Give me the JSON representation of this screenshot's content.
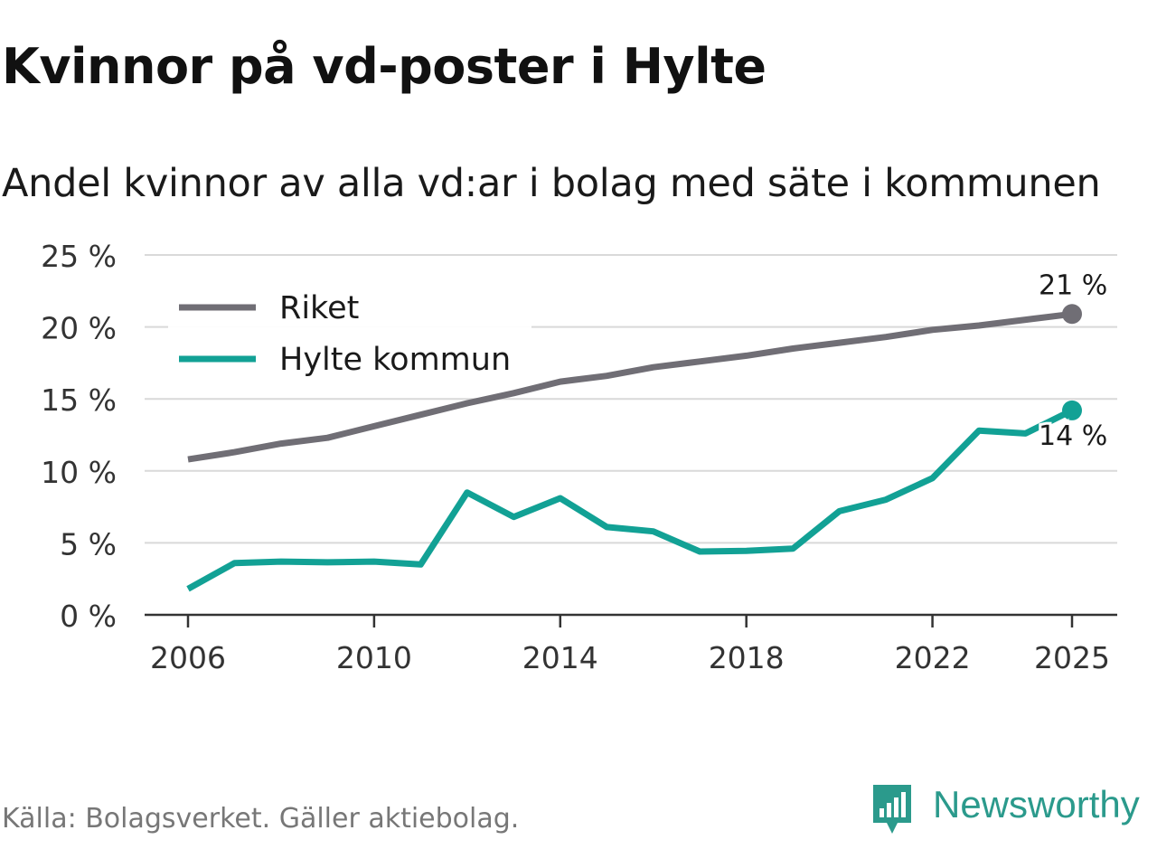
{
  "title": "Kvinnor på vd-poster i Hylte",
  "subtitle": "Andel kvinnor av alla vd:ar i bolag med säte i kommunen",
  "source": "Källa: Bolagsverket. Gäller aktiebolag.",
  "brand": {
    "name": "Newsworthy"
  },
  "colors": {
    "riket": "#706e75",
    "hylte": "#12a195",
    "grid": "#d9d9d9",
    "axis": "#333333"
  },
  "chart_data": {
    "type": "line",
    "title": "Kvinnor på vd-poster i Hylte",
    "subtitle": "Andel kvinnor av alla vd:ar i bolag med säte i kommunen",
    "xlabel": "",
    "ylabel": "",
    "ylim": [
      0,
      25
    ],
    "xlim": [
      2006,
      2025
    ],
    "y_ticks": [
      0,
      5,
      10,
      15,
      20,
      25
    ],
    "y_tick_labels": [
      "0 %",
      "5 %",
      "10 %",
      "15 %",
      "20 %",
      "25 %"
    ],
    "x_ticks": [
      2006,
      2010,
      2014,
      2018,
      2022,
      2025
    ],
    "x_tick_labels": [
      "2006",
      "2010",
      "2014",
      "2018",
      "2022",
      "2025"
    ],
    "legend_position": "top-left",
    "x": [
      2006,
      2007,
      2008,
      2009,
      2010,
      2011,
      2012,
      2013,
      2014,
      2015,
      2016,
      2017,
      2018,
      2019,
      2020,
      2021,
      2022,
      2023,
      2024,
      2025
    ],
    "series": [
      {
        "name": "Riket",
        "color_key": "riket",
        "values": [
          10.8,
          11.3,
          11.9,
          12.3,
          13.1,
          13.9,
          14.7,
          15.4,
          16.2,
          16.6,
          17.2,
          17.6,
          18.0,
          18.5,
          18.9,
          19.3,
          19.8,
          20.1,
          20.5,
          20.9
        ],
        "end_label": "21 %"
      },
      {
        "name": "Hylte kommun",
        "color_key": "hylte",
        "values": [
          1.8,
          3.6,
          3.7,
          3.65,
          3.7,
          3.5,
          8.5,
          6.8,
          8.1,
          6.1,
          5.8,
          4.4,
          4.45,
          4.6,
          7.2,
          8.0,
          9.5,
          12.8,
          12.6,
          14.2
        ],
        "end_label": "14 %"
      }
    ]
  }
}
